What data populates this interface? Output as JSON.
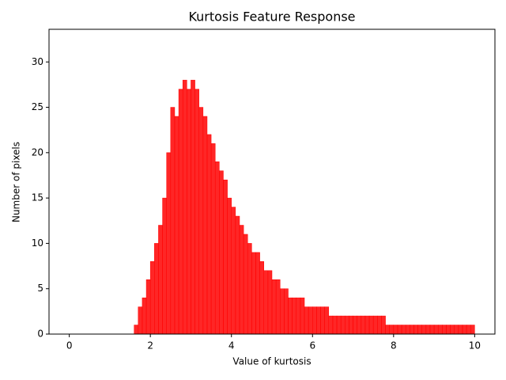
{
  "chart_data": {
    "type": "histogram",
    "title": "Kurtosis Feature Response",
    "xlabel": "Value of kurtosis",
    "ylabel": "Number of pixels",
    "color": "#ff0000",
    "bins": [
      0,
      0.1,
      0.2,
      0.3,
      0.4,
      0.5,
      0.6,
      0.7,
      0.8,
      0.9,
      1,
      1.1,
      1.2,
      1.3,
      1.4,
      1.5,
      1.6,
      1.7,
      1.8,
      1.9,
      2,
      2.1,
      2.2,
      2.3,
      2.4,
      2.5,
      2.6,
      2.7,
      2.8,
      2.9,
      3,
      3.1,
      3.2,
      3.3,
      3.4,
      3.5,
      3.6,
      3.7,
      3.8,
      3.9,
      4,
      4.1,
      4.2,
      4.3,
      4.4,
      4.5,
      4.6,
      4.7,
      4.8,
      4.9,
      5,
      5.1,
      5.2,
      5.3,
      5.4,
      5.5,
      5.6,
      5.7,
      5.8,
      5.9,
      6,
      6.1,
      6.2,
      6.3,
      6.4,
      6.5,
      6.6,
      6.7,
      6.8,
      6.9,
      7,
      7.1,
      7.2,
      7.3,
      7.4,
      7.5,
      7.6,
      7.7,
      7.8,
      7.9,
      8,
      8.1,
      8.2,
      8.3,
      8.4,
      8.5,
      8.6,
      8.7,
      8.8,
      8.9,
      9,
      9.1,
      9.2,
      9.3,
      9.4,
      9.5,
      9.6,
      9.7,
      9.8,
      9.9,
      10
    ],
    "values": [
      0,
      0,
      0,
      0,
      0,
      0,
      0,
      0,
      0,
      0,
      0,
      0,
      0,
      0,
      0,
      0,
      1,
      3,
      4,
      6,
      8,
      10,
      12,
      15,
      20,
      25,
      24,
      27,
      28,
      27,
      28,
      27,
      25,
      24,
      22,
      21,
      19,
      18,
      17,
      15,
      14,
      13,
      12,
      11,
      10,
      9,
      9,
      8,
      7,
      7,
      6,
      6,
      5,
      5,
      4,
      4,
      4,
      4,
      3,
      3,
      3,
      3,
      3,
      3,
      2,
      2,
      2,
      2,
      2,
      2,
      2,
      2,
      2,
      2,
      2,
      2,
      2,
      2,
      1,
      1,
      1,
      1,
      1,
      1,
      1,
      1,
      1,
      1,
      1,
      1,
      1,
      1,
      1,
      1,
      1,
      1,
      1,
      1,
      1,
      1
    ],
    "xlim": [
      -0.5,
      10.5
    ],
    "ylim": [
      0,
      33.6
    ],
    "xticks": [
      0,
      2,
      4,
      6,
      8,
      10
    ],
    "yticks": [
      0,
      5,
      10,
      15,
      20,
      25,
      30
    ]
  }
}
